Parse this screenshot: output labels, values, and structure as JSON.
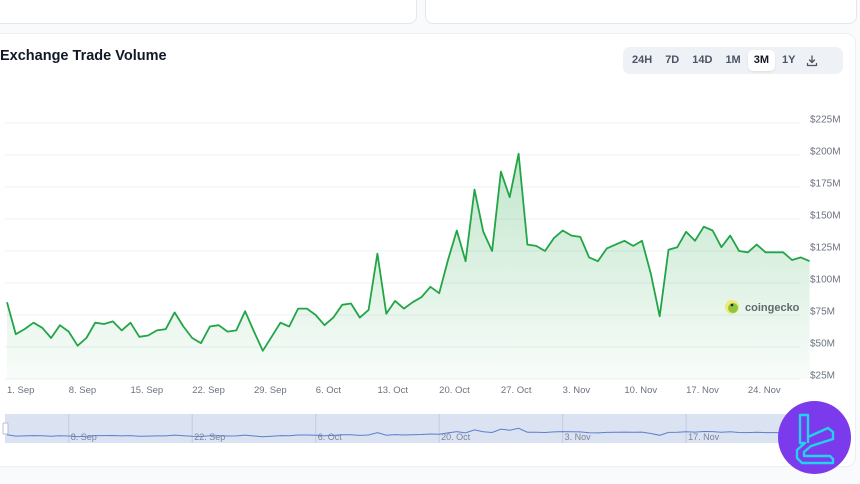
{
  "top_cards": [
    {
      "id": "left"
    },
    {
      "id": "right"
    }
  ],
  "header": {
    "title": "Exchange Trade Volume"
  },
  "range_selector": {
    "options": [
      "24H",
      "7D",
      "14D",
      "1M",
      "3M",
      "1Y"
    ],
    "active": "3M",
    "download_icon": "download-icon"
  },
  "watermark": {
    "text": "coingecko",
    "icon": "gecko-logo-icon"
  },
  "brand_badge": {
    "icon": "tc-logo-icon",
    "color": "#7c3aed",
    "accent": "#22d3ee"
  },
  "colors": {
    "line": "#22a547",
    "fill": "#22a547",
    "navigator_bg": "#dbe2f1",
    "navigator_line": "#5b7fce",
    "grid": "#eef0f3",
    "axis_text": "#6b7280"
  },
  "chart_data": {
    "type": "area",
    "title": "Exchange Trade Volume",
    "xlabel": "",
    "ylabel": "",
    "ylim": [
      25,
      225
    ],
    "y_ticks": [
      "$25M",
      "$50M",
      "$75M",
      "$100M",
      "$125M",
      "$150M",
      "$175M",
      "$200M",
      "$225M"
    ],
    "x_ticks": [
      "1. Sep",
      "8. Sep",
      "15. Sep",
      "22. Sep",
      "29. Sep",
      "6. Oct",
      "13. Oct",
      "20. Oct",
      "27. Oct",
      "3. Nov",
      "10. Nov",
      "17. Nov",
      "24. Nov"
    ],
    "navigator_ticks": [
      "8. Sep",
      "22. Sep",
      "6. Oct",
      "20. Oct",
      "3. Nov",
      "17. Nov"
    ],
    "grid": true,
    "legend": "none",
    "series": [
      {
        "name": "Exchange Trade Volume (USD M)",
        "start_date": "1. Sep",
        "interval": "1 day",
        "values": [
          85,
          60,
          64,
          69,
          65,
          57,
          67,
          62,
          51,
          57,
          69,
          68,
          70,
          63,
          69,
          58,
          59,
          63,
          64,
          77,
          66,
          57,
          53,
          66,
          67,
          62,
          63,
          78,
          62,
          47,
          58,
          69,
          66,
          80,
          80,
          75,
          67,
          73,
          83,
          84,
          73,
          79,
          123,
          76,
          86,
          80,
          85,
          89,
          97,
          92,
          118,
          141,
          117,
          173,
          140,
          125,
          187,
          167,
          201,
          130,
          129,
          125,
          135,
          141,
          137,
          136,
          120,
          117,
          127,
          130,
          133,
          129,
          133,
          107,
          74,
          126,
          128,
          140,
          133,
          144,
          141,
          128,
          137,
          125,
          124,
          130,
          124,
          124,
          124,
          118,
          120,
          117
        ]
      }
    ]
  }
}
